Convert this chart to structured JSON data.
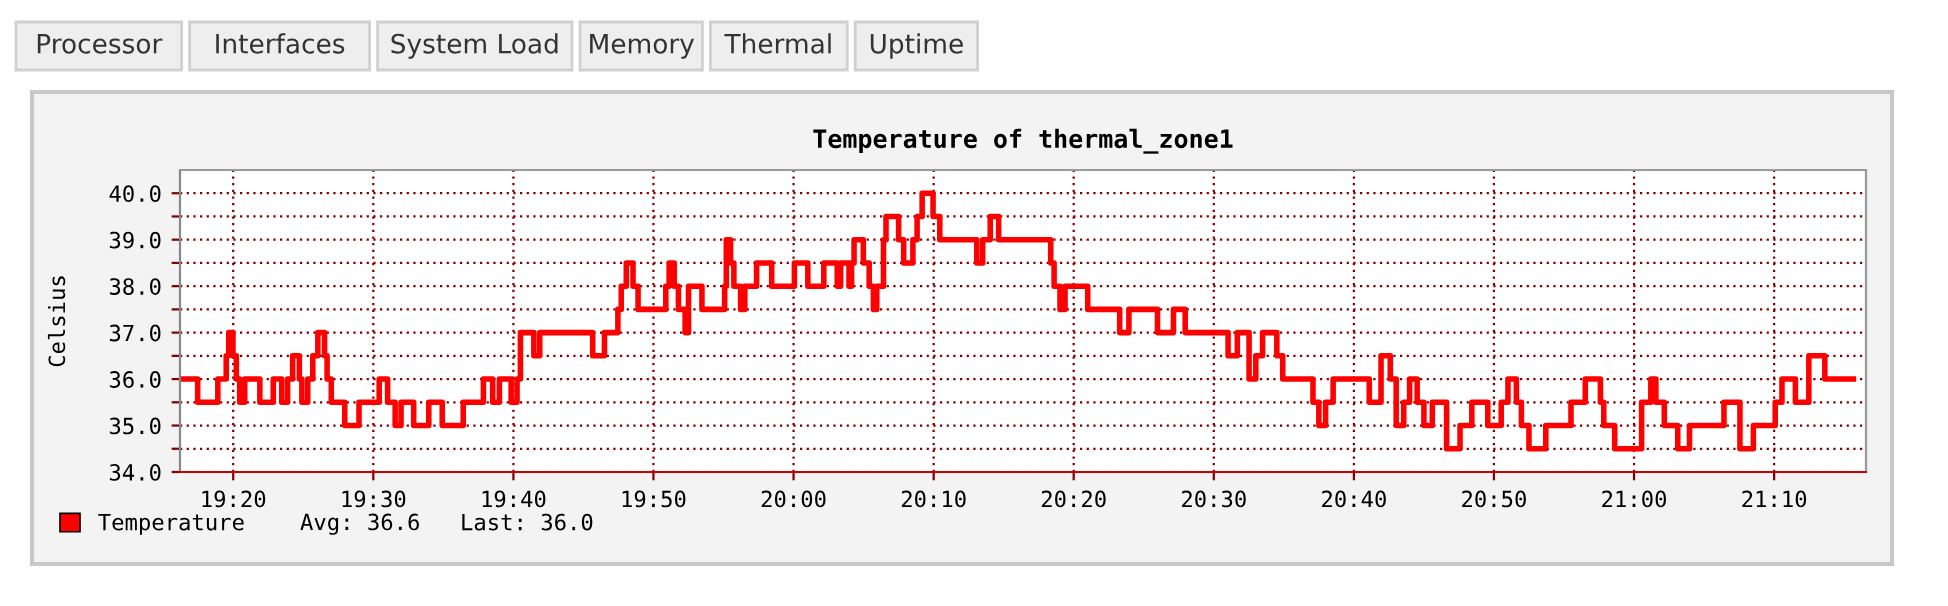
{
  "chart_data": {
    "type": "step",
    "title": "Temperature of thermal_zone1",
    "ylabel": "Celsius",
    "annotations": [
      "Processor",
      "Interfaces",
      "System Load",
      "Memory",
      "Thermal",
      "Uptime",
      "Avg: 36.6",
      "Last: 36.0"
    ],
    "xlim": [
      19.27,
      21.276
    ],
    "xticks": [
      {
        "value": 19.3333,
        "label": "19:20"
      },
      {
        "value": 19.5,
        "label": "19:30"
      },
      {
        "value": 19.6667,
        "label": "19:40"
      },
      {
        "value": 19.8333,
        "label": "19:50"
      },
      {
        "value": 20.0,
        "label": "20:00"
      },
      {
        "value": 20.1667,
        "label": "20:10"
      },
      {
        "value": 20.3333,
        "label": "20:20"
      },
      {
        "value": 20.5,
        "label": "20:30"
      },
      {
        "value": 20.6667,
        "label": "20:40"
      },
      {
        "value": 20.8333,
        "label": "20:50"
      },
      {
        "value": 21.0,
        "label": "21:00"
      },
      {
        "value": 21.1667,
        "label": "21:10"
      }
    ],
    "ylim": [
      34,
      40.5
    ],
    "yticks": [
      {
        "value": 34,
        "label": "34.0"
      },
      {
        "value": 34.5,
        "label": null
      },
      {
        "value": 35,
        "label": "35.0"
      },
      {
        "value": 35.5,
        "label": null
      },
      {
        "value": 36,
        "label": "36.0"
      },
      {
        "value": 36.5,
        "label": null
      },
      {
        "value": 37,
        "label": "37.0"
      },
      {
        "value": 37.5,
        "label": null
      },
      {
        "value": 38,
        "label": "38.0"
      },
      {
        "value": 38.5,
        "label": null
      },
      {
        "value": 39,
        "label": "39.0"
      },
      {
        "value": 39.5,
        "label": null
      },
      {
        "value": 40,
        "label": "40.0"
      }
    ],
    "grid": true,
    "legend": "bottom left",
    "series": [
      {
        "name": "Temperature",
        "color": "#ff0000",
        "x": [
          19.27,
          19.291,
          19.315,
          19.325,
          19.328,
          19.333,
          19.337,
          19.341,
          19.347,
          19.365,
          19.381,
          19.391,
          19.398,
          19.404,
          19.412,
          19.415,
          19.422,
          19.428,
          19.434,
          19.442,
          19.445,
          19.45,
          19.466,
          19.483,
          19.507,
          19.517,
          19.526,
          19.533,
          19.548,
          19.566,
          19.582,
          19.607,
          19.631,
          19.642,
          19.65,
          19.664,
          19.671,
          19.675,
          19.691,
          19.698,
          19.761,
          19.775,
          19.791,
          19.795,
          19.801,
          19.809,
          19.815,
          19.848,
          19.852,
          19.858,
          19.863,
          19.871,
          19.875,
          19.891,
          19.918,
          19.92,
          19.925,
          19.929,
          19.937,
          19.942,
          19.956,
          19.974,
          20.001,
          20.017,
          20.036,
          20.052,
          20.056,
          20.066,
          20.069,
          20.072,
          20.083,
          20.09,
          20.095,
          20.099,
          20.107,
          20.11,
          20.125,
          20.131,
          20.142,
          20.147,
          20.153,
          20.166,
          20.174,
          20.218,
          20.225,
          20.234,
          20.244,
          20.306,
          20.31,
          20.317,
          20.323,
          20.35,
          20.388,
          20.399,
          20.433,
          20.452,
          20.466,
          20.517,
          20.528,
          20.542,
          20.55,
          20.558,
          20.575,
          20.582,
          20.618,
          20.625,
          20.633,
          20.642,
          20.685,
          20.699,
          20.71,
          20.717,
          20.726,
          20.733,
          20.742,
          20.75,
          20.76,
          20.777,
          20.793,
          20.807,
          20.826,
          20.842,
          20.85,
          20.86,
          20.866,
          20.875,
          20.895,
          20.925,
          20.942,
          20.96,
          20.964,
          20.977,
          21.009,
          21.02,
          21.026,
          21.036,
          21.052,
          21.066,
          21.107,
          21.126,
          21.142,
          21.168,
          21.176,
          21.192,
          21.208,
          21.227,
          21.261
        ],
        "values": [
          36.0,
          35.5,
          36.0,
          36.5,
          37.0,
          36.5,
          36.0,
          35.5,
          36.0,
          35.5,
          36.0,
          35.5,
          36.0,
          36.5,
          36.0,
          35.5,
          36.0,
          36.5,
          37.0,
          36.5,
          36.0,
          35.5,
          35.0,
          35.5,
          36.0,
          35.5,
          35.0,
          35.5,
          35.0,
          35.5,
          35.0,
          35.5,
          36.0,
          35.5,
          36.0,
          35.5,
          36.0,
          37.0,
          36.5,
          37.0,
          36.5,
          37.0,
          37.5,
          38.0,
          38.5,
          38.0,
          37.5,
          38.0,
          38.5,
          38.0,
          37.5,
          37.0,
          38.0,
          37.5,
          38.0,
          39.0,
          38.5,
          38.0,
          37.5,
          38.0,
          38.5,
          38.0,
          38.5,
          38.0,
          38.5,
          38.0,
          38.5,
          38.0,
          38.5,
          39.0,
          38.5,
          38.0,
          37.5,
          38.0,
          39.0,
          39.5,
          39.0,
          38.5,
          39.0,
          39.5,
          40.0,
          39.5,
          39.0,
          38.5,
          39.0,
          39.5,
          39.0,
          38.5,
          38.0,
          37.5,
          38.0,
          37.5,
          37.0,
          37.5,
          37.0,
          37.5,
          37.0,
          36.5,
          37.0,
          36.0,
          36.5,
          37.0,
          36.5,
          36.0,
          35.5,
          35.0,
          35.5,
          36.0,
          35.5,
          36.5,
          36.0,
          35.0,
          35.5,
          36.0,
          35.5,
          35.0,
          35.5,
          34.5,
          35.0,
          35.5,
          35.0,
          35.5,
          36.0,
          35.5,
          35.0,
          34.5,
          35.0,
          35.5,
          36.0,
          35.5,
          35.0,
          34.5,
          35.5,
          36.0,
          35.5,
          35.0,
          34.5,
          35.0,
          35.5,
          34.5,
          35.0,
          35.5,
          36.0,
          35.5,
          36.5,
          36.0,
          36.0
        ]
      }
    ]
  }
}
